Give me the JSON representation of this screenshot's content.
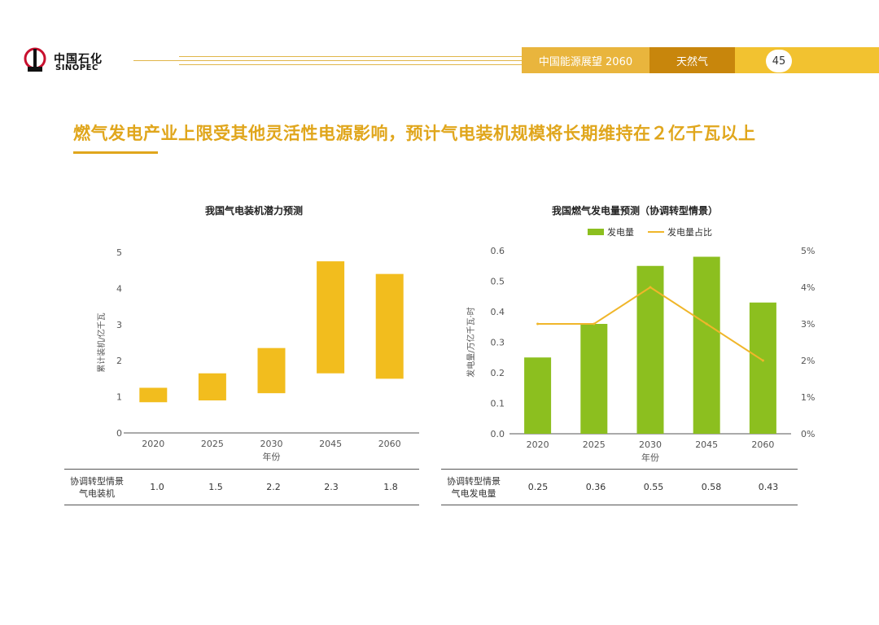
{
  "header": {
    "logo_cn": "中国石化",
    "logo_en": "SINOPEC",
    "report_title": "中国能源展望 2060",
    "section": "天然气",
    "page_number": "45"
  },
  "slide_title": "燃气发电产业上限受其他灵活性电源影响，预计气电装机规模将长期维持在２亿千瓦以上",
  "colors": {
    "accent": "#e0a61c",
    "bar_yellow": "#f2bd1e",
    "bar_green": "#8cbf1f",
    "line": "#f0b62a",
    "section_bg": "#c8860c"
  },
  "chart_data": [
    {
      "type": "bar",
      "subtype": "floating-range",
      "title": "我国气电装机潜力预测",
      "xlabel": "年份",
      "ylabel": "累计装机/亿千瓦",
      "ylim": [
        0,
        5
      ],
      "yticks": [
        "0",
        "1",
        "2",
        "3",
        "4",
        "5"
      ],
      "categories": [
        "2020",
        "2025",
        "2030",
        "2045",
        "2060"
      ],
      "ranges": [
        [
          0.85,
          1.25
        ],
        [
          0.9,
          1.65
        ],
        [
          1.1,
          2.35
        ],
        [
          1.65,
          4.75
        ],
        [
          1.5,
          4.4
        ]
      ],
      "grid": false,
      "table": {
        "row_label_1": "协调转型情景",
        "row_label_2": "气电装机",
        "values": [
          "1.0",
          "1.5",
          "2.2",
          "2.3",
          "1.8"
        ]
      }
    },
    {
      "type": "bar",
      "subtype": "bar-line-dual-axis",
      "title": "我国燃气发电量预测（协调转型情景）",
      "xlabel": "年份",
      "ylabel": "发电量/万亿千瓦·时",
      "ylim": [
        0,
        0.6
      ],
      "yticks": [
        "0.0",
        "0.1",
        "0.2",
        "0.3",
        "0.4",
        "0.5",
        "0.6"
      ],
      "y2lim": [
        0,
        5
      ],
      "y2ticks": [
        "0%",
        "1%",
        "2%",
        "3%",
        "4%",
        "5%"
      ],
      "categories": [
        "2020",
        "2025",
        "2030",
        "2045",
        "2060"
      ],
      "series": [
        {
          "name": "发电量",
          "type": "bar",
          "values": [
            0.25,
            0.36,
            0.55,
            0.58,
            0.43
          ]
        },
        {
          "name": "发电量占比",
          "type": "line",
          "axis": "right",
          "values": [
            3,
            3,
            4,
            3,
            2
          ]
        }
      ],
      "legend": "top",
      "grid": false,
      "table": {
        "row_label_1": "协调转型情景",
        "row_label_2": "气电发电量",
        "values": [
          "0.25",
          "0.36",
          "0.55",
          "0.58",
          "0.43"
        ]
      }
    }
  ]
}
